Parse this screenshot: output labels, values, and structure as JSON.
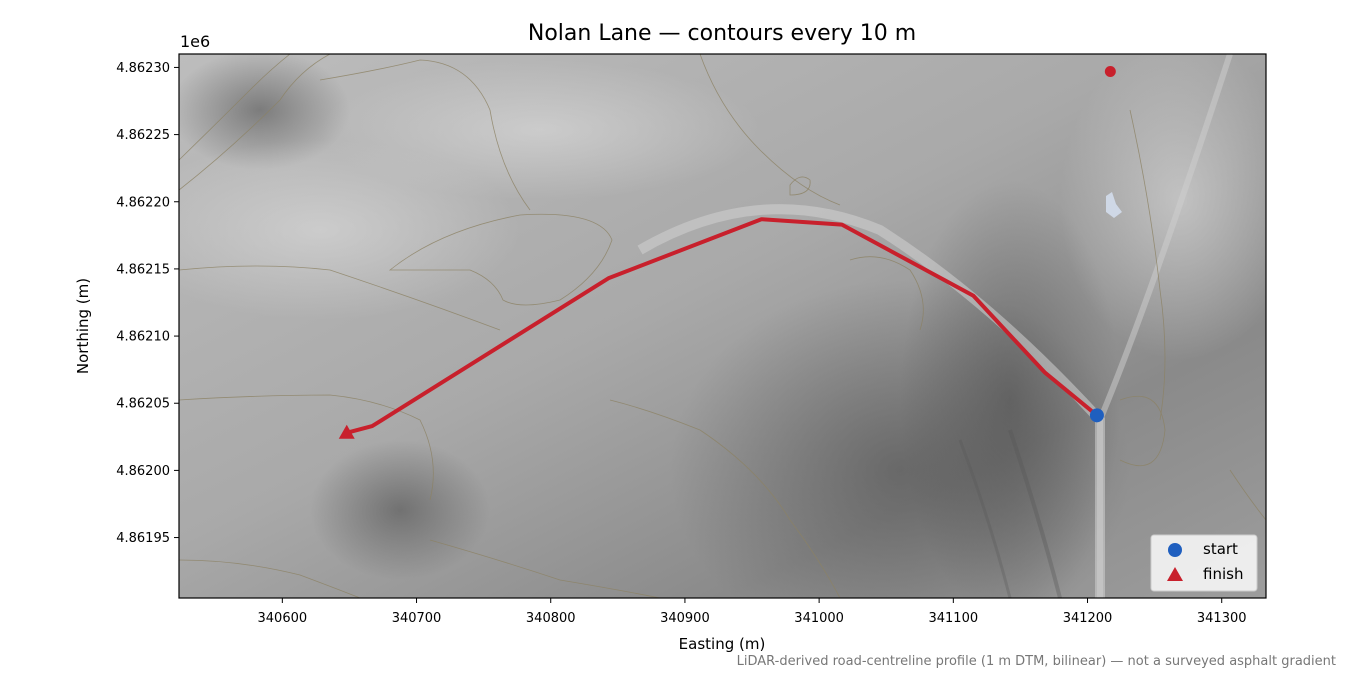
{
  "chart_data": {
    "type": "line",
    "title": "Nolan Lane — contours every 10 m",
    "xlabel": "Easting (m)",
    "ylabel": "Northing (m)",
    "y_offset_label": "1e6",
    "footnote": "LiDAR-derived road-centreline profile (1 m DTM, bilinear) — not a surveyed asphalt gradient",
    "xlim": [
      340523,
      341333
    ],
    "ylim": [
      4861905,
      4862310
    ],
    "x_ticks": [
      340600,
      340700,
      340800,
      340900,
      341000,
      341100,
      341200,
      341300
    ],
    "y_ticks": [
      4861950,
      4862000,
      4862050,
      4862100,
      4862150,
      4862200,
      4862250,
      4862300
    ],
    "x_tick_labels": [
      "340600",
      "340700",
      "340800",
      "340900",
      "341000",
      "341100",
      "341200",
      "341300"
    ],
    "y_tick_labels": [
      "4.86195",
      "4.86200",
      "4.86205",
      "4.86210",
      "4.86215",
      "4.86220",
      "4.86225",
      "4.86230"
    ],
    "grid": false,
    "legend_position": "bottom-right",
    "background": "hillshade relief with 10 m contour lines",
    "series": [
      {
        "name": "route",
        "color": "#c8202c",
        "points": [
          [
            341207,
            4862041
          ],
          [
            341168,
            4862073
          ],
          [
            341115,
            4862130
          ],
          [
            341017,
            4862183
          ],
          [
            340957,
            4862187
          ],
          [
            340843,
            4862143
          ],
          [
            340667,
            4862033
          ],
          [
            340648,
            4862028
          ]
        ]
      }
    ],
    "markers": [
      {
        "name": "start",
        "shape": "circle",
        "color": "#1f5fbf",
        "x": 341207,
        "y": 4862041
      },
      {
        "name": "finish",
        "shape": "triangle",
        "color": "#c8202c",
        "x": 340648,
        "y": 4862028
      }
    ],
    "extra_points": [
      {
        "shape": "circle",
        "color": "#c8202c",
        "x": 341217,
        "y": 4862297
      }
    ]
  }
}
